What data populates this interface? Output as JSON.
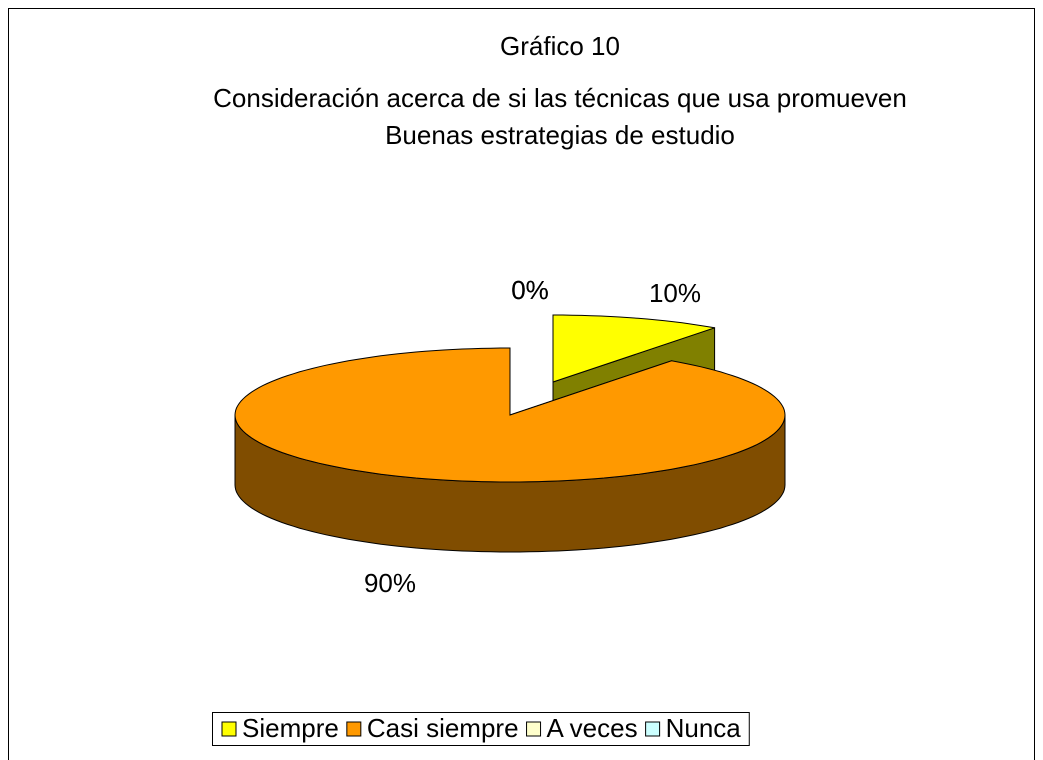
{
  "chart_data": {
    "type": "pie",
    "title": [
      "Gráfico 10",
      "Consideración acerca de si las técnicas que usa promueven",
      "Buenas estrategias de estudio"
    ],
    "categories": [
      "Siempre",
      "Casi siempre",
      "A veces",
      "Nunca"
    ],
    "values": [
      10,
      90,
      0,
      0
    ],
    "value_labels": [
      "10%",
      "90%",
      "0%",
      "0%"
    ],
    "colors": [
      "#ffff00",
      "#ff9900",
      "#ffffcc",
      "#ccffff"
    ],
    "legend": "bottom"
  }
}
